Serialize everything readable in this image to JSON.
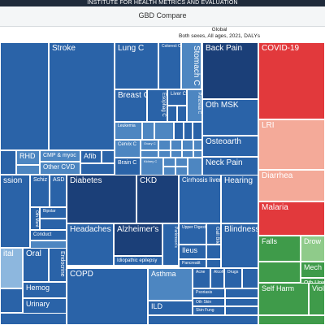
{
  "header": {
    "institute": "INSTITUTE FOR HEALTH METRICS AND EVALUATION",
    "app_title": "GBD Compare",
    "subtitle_line1": "Global",
    "subtitle_line2": "Both sexes, All ages, 2021, DALYs"
  },
  "colors": {
    "ncd_dark": "#1b3f78",
    "ncd_mid": "#2a63a8",
    "ncd_light": "#4d86c1",
    "ncd_pale": "#8db7de",
    "communicable_red": "#e2393c",
    "communicable_pink": "#f4aa99",
    "injury_green": "#3f9b4a",
    "injury_pale": "#8fcb8a"
  },
  "treemap": {
    "labels": {
      "stroke": "Stroke",
      "lung_c": "Lung C",
      "colorect_c": "Colorect C",
      "stomach_c": "Stomach C",
      "back_pain": "Back Pain",
      "covid19": "COVID-19",
      "breast_c": "Breast C",
      "esophag_c": "Esophag C",
      "liver_c": "Liver C",
      "pancreas_c": "Pancreas C",
      "oth_msk": "Oth MSK",
      "leukemia": "Leukemia",
      "cervix_c": "Cervix C",
      "ovary_c": "Ovary C",
      "brain_c": "Brain C",
      "kidney_c": "Kidney C",
      "osteoarth": "Osteoarth",
      "lri": "LRI",
      "rhd": "RHD",
      "cmp_myoc": "CMP & myoc",
      "afib": "Afib",
      "neck_pain": "Neck Pain",
      "other_cvd": "Other CVD",
      "diarrhea": "Diarrhea",
      "ssion": "ssion",
      "schiz": "Schiz",
      "asd": "ASD",
      "diabetes": "Diabetes",
      "ckd": "CKD",
      "cirrhosis_liver": "Cirrhosis liver",
      "hearing": "Hearing",
      "malaria": "Malaria",
      "bipolar": "Bipolar",
      "oth_ment": "Oth Ment",
      "conduct": "Conduct",
      "headaches": "Headaches",
      "alzheimers": "Alzheimer's",
      "parkinsons": "Parkinson's",
      "upper_digest": "Upper Digest",
      "gall_bile": "Gall Bile",
      "blindness": "Blindness",
      "falls": "Falls",
      "drown": "Drow",
      "idiopathic_epilepsy": "Idiopathic epilepsy",
      "ileus": "Ileus",
      "pancreatit": "Pancreatit",
      "mech": "Mech",
      "oth_unin": "Oth Unin",
      "ital": "ital",
      "oral": "Oral",
      "endocrine": "Endocrine",
      "copd": "COPD",
      "asthma": "Asthma",
      "acne": "Acne",
      "alcohol": "Alcohol",
      "drugs": "Drugs",
      "self_harm": "Self Harm",
      "viol": "Viol",
      "hemog": "Hemog",
      "psoriasis": "Psoriasis",
      "oth_skin": "Oth Skin",
      "urinary": "Urinary",
      "ild": "ILD",
      "skin_fung": "Skin Fung"
    }
  }
}
